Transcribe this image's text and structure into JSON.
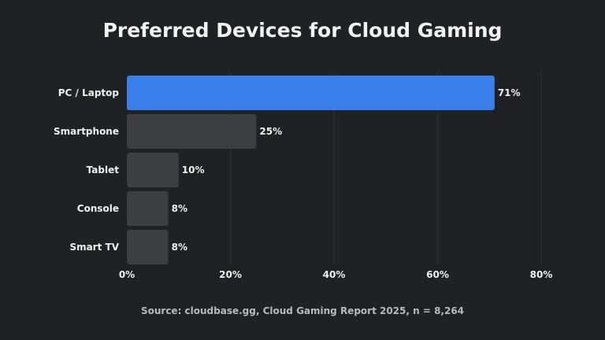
{
  "chart_data": {
    "type": "bar",
    "orientation": "horizontal",
    "title": "Preferred Devices for Cloud Gaming",
    "categories": [
      "PC / Laptop",
      "Smartphone",
      "Tablet",
      "Console",
      "Smart TV"
    ],
    "values": [
      71,
      25,
      10,
      8,
      8
    ],
    "data_labels": [
      "71%",
      "25%",
      "10%",
      "8%",
      "8%"
    ],
    "xlim": [
      0,
      80
    ],
    "x_ticks": [
      0,
      20,
      40,
      60,
      80
    ],
    "x_tick_labels": [
      "0%",
      "20%",
      "40%",
      "60%",
      "80%"
    ],
    "xlabel": "",
    "ylabel": "",
    "grid": true,
    "highlight_color": "#3a7fe9",
    "bar_color": "#3c3e42",
    "background": "#202124",
    "source": "Source: cloudbase.gg, Cloud Gaming Report 2025, n = 8,264"
  }
}
